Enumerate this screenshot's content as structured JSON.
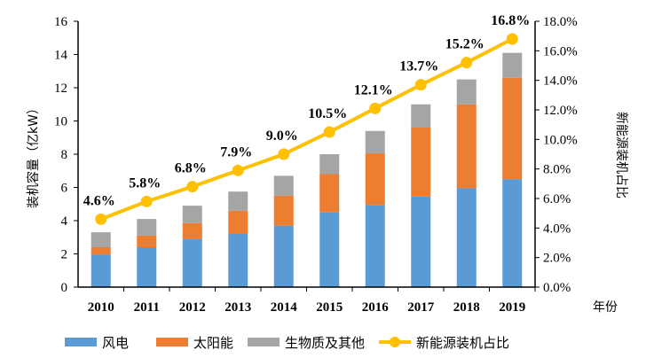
{
  "chart_data": {
    "type": "bar",
    "stacked": true,
    "categories": [
      "2010",
      "2011",
      "2012",
      "2013",
      "2014",
      "2015",
      "2016",
      "2017",
      "2018",
      "2019"
    ],
    "xlabel": "年份",
    "ylabel": "装机容量（亿kW）",
    "ylabel_right": "新能源装机占比",
    "ylim": [
      0,
      16
    ],
    "yticks": [
      "0",
      "2",
      "4",
      "6",
      "8",
      "10",
      "12",
      "14",
      "16"
    ],
    "ylim_right": [
      0,
      18
    ],
    "yticks_right": [
      "0.0%",
      "2.0%",
      "4.0%",
      "6.0%",
      "8.0%",
      "10.0%",
      "12.0%",
      "14.0%",
      "16.0%",
      "18.0%"
    ],
    "grid": false,
    "legend_position": "bottom",
    "series": [
      {
        "name": "风电",
        "type": "bar",
        "color": "#5B9BD5",
        "values": [
          1.95,
          2.4,
          2.9,
          3.2,
          3.7,
          4.5,
          4.95,
          5.45,
          5.95,
          6.5
        ]
      },
      {
        "name": "太阳能",
        "type": "bar",
        "color": "#ED7D31",
        "values": [
          0.45,
          0.7,
          0.95,
          1.4,
          1.8,
          2.3,
          3.1,
          4.15,
          5.05,
          6.1
        ]
      },
      {
        "name": "生物质及其他",
        "type": "bar",
        "color": "#A5A5A5",
        "values": [
          0.9,
          1.0,
          1.05,
          1.15,
          1.2,
          1.2,
          1.35,
          1.4,
          1.5,
          1.5
        ]
      },
      {
        "name": "新能源装机占比",
        "type": "line",
        "axis": "right",
        "color": "#FFC000",
        "values": [
          4.6,
          5.8,
          6.8,
          7.9,
          9.0,
          10.5,
          12.1,
          13.7,
          15.2,
          16.8
        ],
        "labels": [
          "4.6%",
          "5.8%",
          "6.8%",
          "7.9%",
          "9.0%",
          "10.5%",
          "12.1%",
          "13.7%",
          "15.2%",
          "16.8%"
        ]
      }
    ]
  }
}
